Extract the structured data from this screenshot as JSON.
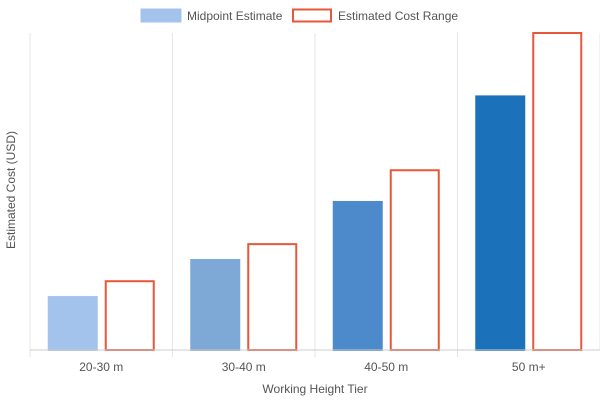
{
  "chart_data": {
    "type": "bar",
    "title": "",
    "xlabel": "Working Height Tier",
    "ylabel": "Estimated Cost (USD)",
    "categories": [
      "20-30 m",
      "30-40 m",
      "40-50 m",
      "50 m+"
    ],
    "ylim": [
      0,
      1000
    ],
    "grid": {
      "vertical": true,
      "horizontal": false
    },
    "legend_position": "top-center",
    "y_tick_labels_visible": false,
    "series": [
      {
        "name": "Midpoint Estimate",
        "style": "filled",
        "values": [
          167,
          284,
          467,
          800
        ],
        "colors": [
          "#a4c3ec",
          "#7ea8d6",
          "#4c8acb",
          "#1b72ba"
        ],
        "legend_color": "#a4c3ec"
      },
      {
        "name": "Estimated Cost Range",
        "style": "outline",
        "values": [
          217,
          334,
          567,
          1000
        ],
        "color": "#e8573a"
      }
    ]
  }
}
